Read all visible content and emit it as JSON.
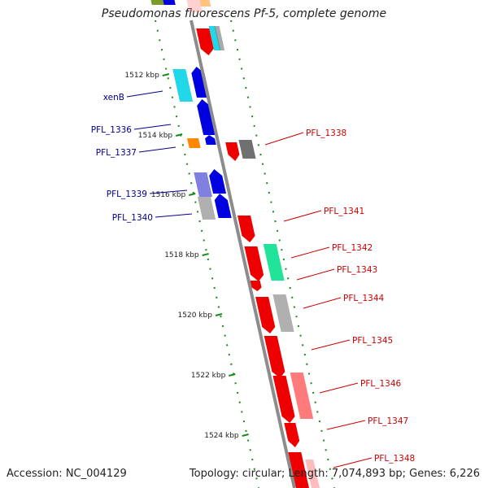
{
  "title": "Pseudomonas fluorescens Pf-5, complete genome",
  "footer": {
    "accession": "Accession: NC_004129",
    "summary": "Topology: circular; Length: 7,074,893 bp; Genes: 6,226"
  },
  "colors": {
    "backbone": "#8c8c8c",
    "tick": "#1a8a1a",
    "forward_label": "#00008b",
    "reverse_label": "#cc0000",
    "forward_gene": "#0000e0",
    "reverse_gene": "#ee0000",
    "cyan_gene": "#22d8e8",
    "orange_gene": "#ff8800",
    "green_gene": "#22e39a",
    "gray_gene": "#b0b0b0",
    "darkgray_gene": "#707070",
    "pink_gene": "#ff7a7a",
    "lavender_gene": "#8080e0"
  },
  "scale": {
    "labels": [
      "1512 kbp",
      "1514 kbp",
      "1516 kbp",
      "1518 kbp",
      "1520 kbp",
      "1522 kbp",
      "1524 kbp"
    ]
  },
  "genes_left": [
    {
      "label": "xenB"
    },
    {
      "label": "PFL_1336"
    },
    {
      "label": "PFL_1337"
    },
    {
      "label": "PFL_1339"
    },
    {
      "label": "PFL_1340"
    }
  ],
  "genes_right": [
    {
      "label": "PFL_1338"
    },
    {
      "label": "PFL_1341"
    },
    {
      "label": "PFL_1342"
    },
    {
      "label": "PFL_1343"
    },
    {
      "label": "PFL_1344"
    },
    {
      "label": "PFL_1345"
    },
    {
      "label": "PFL_1346"
    },
    {
      "label": "PFL_1347"
    },
    {
      "label": "PFL_1348"
    }
  ]
}
